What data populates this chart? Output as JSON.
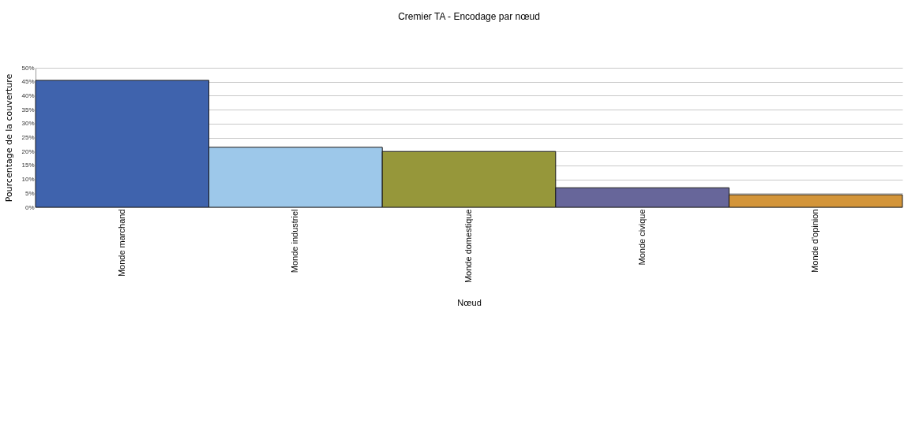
{
  "chart_data": {
    "type": "bar",
    "title": "Cremier TA - Encodage par nœud",
    "xlabel": "Nœud",
    "ylabel": "Pourcentage de la couverture",
    "categories": [
      "Monde marchand",
      "Monde industriel",
      "Monde domestique",
      "Monde civique",
      "Monde d'opinion"
    ],
    "values": [
      45.5,
      21.5,
      20,
      7,
      4.5
    ],
    "colors": [
      "#3f63ad",
      "#9dc8ea",
      "#96973a",
      "#67669a",
      "#d3953a"
    ],
    "ylim": [
      0,
      50
    ],
    "yticks": [
      {
        "value": 0,
        "label": "0%"
      },
      {
        "value": 5,
        "label": "5%"
      },
      {
        "value": 10,
        "label": "10%"
      },
      {
        "value": 15,
        "label": "15%"
      },
      {
        "value": 20,
        "label": "20%"
      },
      {
        "value": 25,
        "label": "25%"
      },
      {
        "value": 30,
        "label": "30%"
      },
      {
        "value": 35,
        "label": "35%"
      },
      {
        "value": 40,
        "label": "40%"
      },
      {
        "value": 45,
        "label": "45%"
      },
      {
        "value": 50,
        "label": "50%"
      }
    ],
    "grid": "y"
  }
}
